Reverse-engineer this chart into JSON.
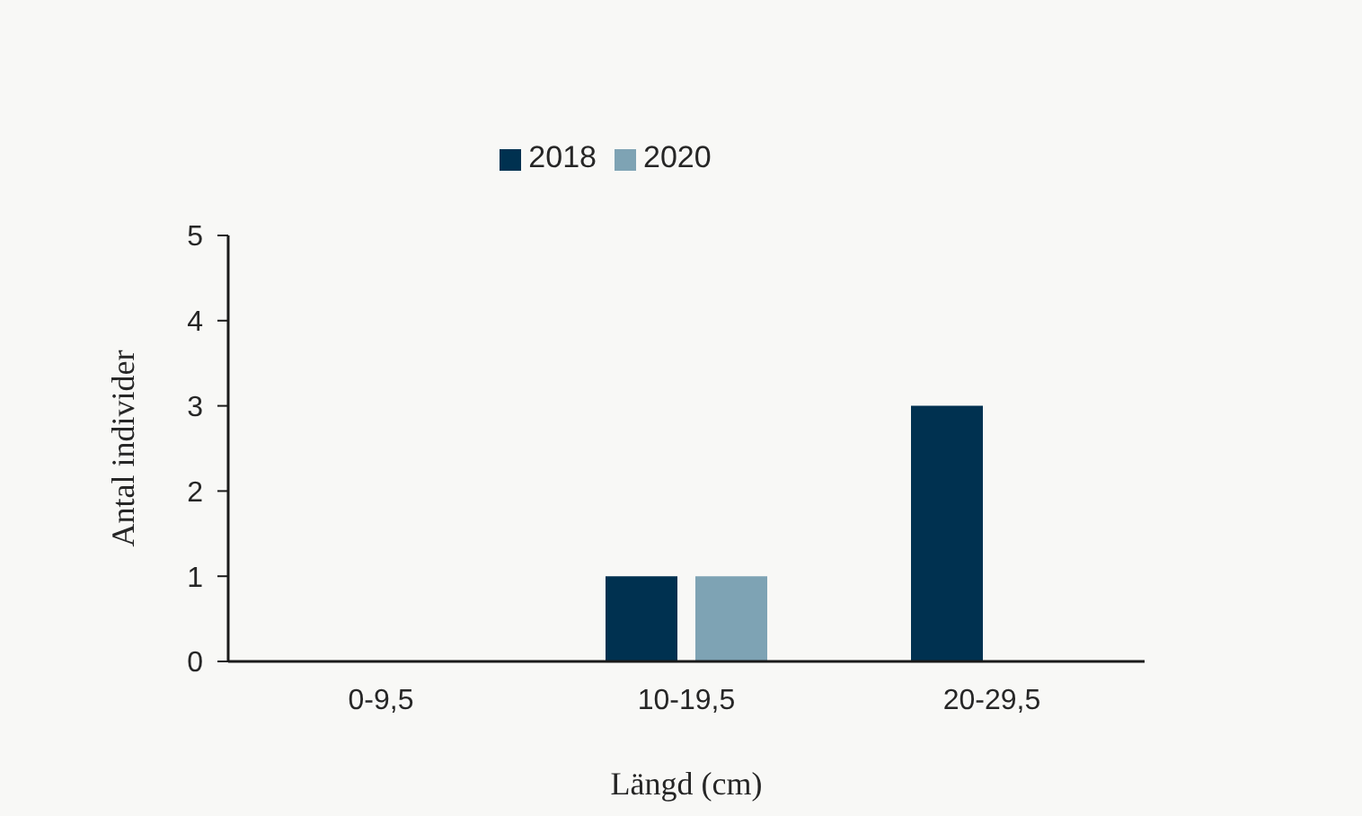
{
  "chart_data": {
    "type": "bar",
    "categories": [
      "0-9,5",
      "10-19,5",
      "20-29,5"
    ],
    "series": [
      {
        "name": "2018",
        "color": "#003150",
        "values": [
          0,
          1,
          3
        ]
      },
      {
        "name": "2020",
        "color": "#7ea3b4",
        "values": [
          0,
          1,
          0
        ]
      }
    ],
    "xlabel": "Längd (cm)",
    "ylabel": "Antal individer",
    "ylim": [
      0,
      5
    ],
    "yticks": [
      0,
      1,
      2,
      3,
      4,
      5
    ],
    "legend": "top"
  }
}
